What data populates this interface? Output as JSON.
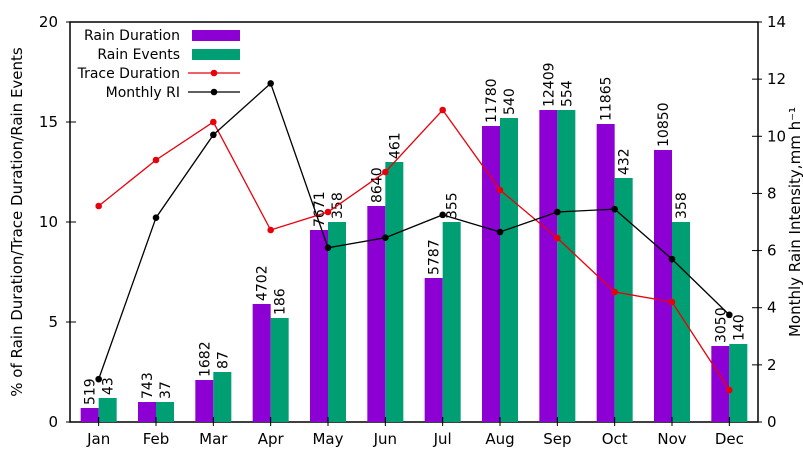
{
  "chart_data": {
    "type": "bar",
    "categories": [
      "Jan",
      "Feb",
      "Mar",
      "Apr",
      "May",
      "Jun",
      "Jul",
      "Aug",
      "Sep",
      "Oct",
      "Nov",
      "Dec"
    ],
    "ylabel": "% of Rain Duration/Trace Duration/Rain Events",
    "y2label": "Monthly Rain Intensity,mm h⁻¹",
    "ylim": [
      0,
      20
    ],
    "y2lim": [
      0,
      14
    ],
    "yticks": [
      0,
      5,
      10,
      15,
      20
    ],
    "y2ticks": [
      0,
      2,
      4,
      6,
      8,
      10,
      12,
      14
    ],
    "grid": false,
    "legend_position": "top-left",
    "series": [
      {
        "name": "Rain Duration",
        "kind": "bar",
        "axis": "left",
        "color": "#8c00d4",
        "values": [
          0.7,
          1.0,
          2.1,
          5.9,
          9.6,
          10.8,
          7.2,
          14.8,
          15.6,
          14.9,
          13.6,
          3.8
        ],
        "labels": [
          "519",
          "743",
          "1682",
          "4702",
          "7671",
          "8640",
          "5787",
          "11780",
          "12409",
          "11865",
          "10850",
          "3050"
        ]
      },
      {
        "name": "Rain Events",
        "kind": "bar",
        "axis": "left",
        "color": "#009e73",
        "values": [
          1.2,
          1.0,
          2.5,
          5.2,
          10.0,
          13.0,
          10.0,
          15.2,
          15.6,
          12.2,
          10.0,
          3.9
        ],
        "labels": [
          "43",
          "37",
          "87",
          "186",
          "358",
          "461",
          "355",
          "540",
          "554",
          "432",
          "358",
          "140"
        ]
      },
      {
        "name": "Trace Duration",
        "kind": "line",
        "axis": "left",
        "color": "#e8000b",
        "values": [
          10.8,
          13.1,
          15.0,
          9.6,
          10.5,
          12.5,
          15.6,
          11.6,
          9.2,
          6.5,
          6.0,
          1.6
        ]
      },
      {
        "name": "Monthly RI",
        "kind": "line",
        "axis": "right",
        "color": "#000000",
        "values": [
          1.5,
          7.15,
          10.05,
          11.85,
          6.1,
          6.45,
          7.25,
          6.65,
          7.35,
          7.45,
          5.7,
          3.75
        ]
      }
    ]
  }
}
